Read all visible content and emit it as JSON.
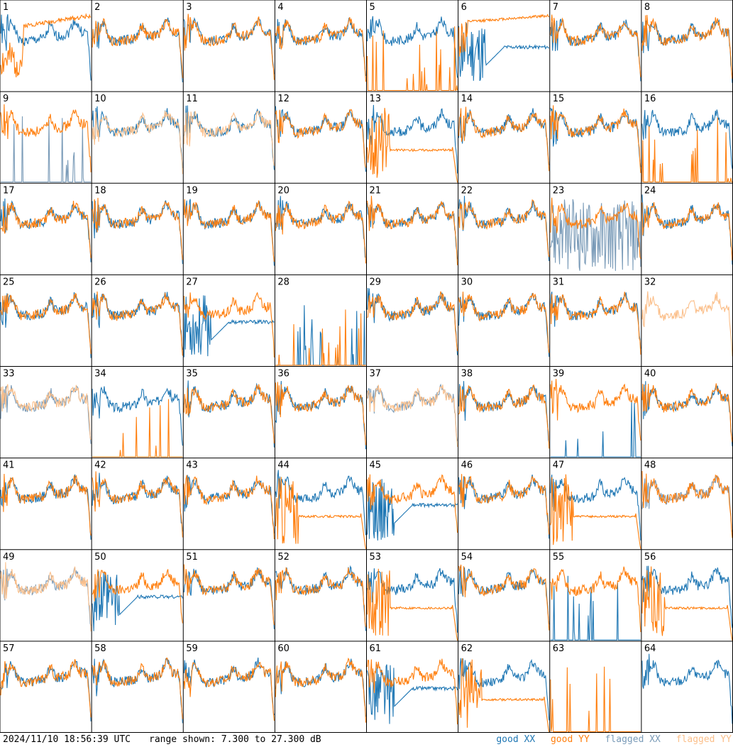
{
  "colors": {
    "good_xx": "#1f77b4",
    "good_yy": "#ff7f0e",
    "flagged_xx": "#7a9bb8",
    "flagged_yy": "#fbbf8a",
    "grid_line": "#000000",
    "background": "#ffffff",
    "label": "#000000"
  },
  "footer": {
    "timestamp": "2024/11/10 18:56:39 UTC",
    "range_text": "range shown: 7.300 to 27.300 dB"
  },
  "legend": [
    {
      "label": "good XX",
      "color": "#1f77b4"
    },
    {
      "label": "good YY",
      "color": "#ff7f0e"
    },
    {
      "label": "flagged XX",
      "color": "#7a9bb8"
    },
    {
      "label": "flagged YY",
      "color": "#fbbf8a"
    }
  ],
  "chart_data": {
    "type": "line",
    "grid": {
      "rows": 8,
      "cols": 8
    },
    "ylim": [
      7.3,
      27.3
    ],
    "yunit": "dB",
    "series_names": [
      "good XX",
      "good YY",
      "flagged XX",
      "flagged YY"
    ],
    "panels": [
      {
        "label": "1",
        "xx": {
          "status": "good",
          "shape": "normal",
          "seed": 1
        },
        "yy": {
          "status": "good",
          "shape": "lowrise",
          "seed": 2
        }
      },
      {
        "label": "2",
        "xx": {
          "status": "good",
          "shape": "normal",
          "seed": 3
        },
        "yy": {
          "status": "good",
          "shape": "normal",
          "seed": 4
        }
      },
      {
        "label": "3",
        "xx": {
          "status": "good",
          "shape": "normal",
          "seed": 5
        },
        "yy": {
          "status": "good",
          "shape": "normal",
          "seed": 6
        }
      },
      {
        "label": "4",
        "xx": {
          "status": "good",
          "shape": "normal",
          "seed": 7
        },
        "yy": {
          "status": "good",
          "shape": "normal",
          "seed": 8
        }
      },
      {
        "label": "5",
        "xx": {
          "status": "good",
          "shape": "normal",
          "seed": 9
        },
        "yy": {
          "status": "good",
          "shape": "spiky",
          "seed": 10
        }
      },
      {
        "label": "6",
        "xx": {
          "status": "good",
          "shape": "dip",
          "seed": 11
        },
        "yy": {
          "status": "good",
          "shape": "flathigh",
          "seed": 12
        }
      },
      {
        "label": "7",
        "xx": {
          "status": "good",
          "shape": "normal",
          "seed": 13
        },
        "yy": {
          "status": "good",
          "shape": "normal",
          "seed": 14
        }
      },
      {
        "label": "8",
        "xx": {
          "status": "good",
          "shape": "normal",
          "seed": 15
        },
        "yy": {
          "status": "good",
          "shape": "normal",
          "seed": 16
        }
      },
      {
        "label": "9",
        "xx": {
          "status": "flagged",
          "shape": "spiky",
          "seed": 17
        },
        "yy": {
          "status": "good",
          "shape": "normal",
          "seed": 18
        }
      },
      {
        "label": "10",
        "xx": {
          "status": "good",
          "shape": "normal",
          "seed": 19
        },
        "yy": {
          "status": "flagged",
          "shape": "normal",
          "seed": 20
        }
      },
      {
        "label": "11",
        "xx": {
          "status": "good",
          "shape": "normal",
          "seed": 21
        },
        "yy": {
          "status": "flagged",
          "shape": "normal",
          "seed": 22
        }
      },
      {
        "label": "12",
        "xx": {
          "status": "good",
          "shape": "normal",
          "seed": 23
        },
        "yy": {
          "status": "good",
          "shape": "normal",
          "seed": 24
        }
      },
      {
        "label": "13",
        "xx": {
          "status": "good",
          "shape": "normal",
          "seed": 25
        },
        "yy": {
          "status": "good",
          "shape": "plateau",
          "seed": 26
        }
      },
      {
        "label": "14",
        "xx": {
          "status": "good",
          "shape": "normal",
          "seed": 27
        },
        "yy": {
          "status": "good",
          "shape": "normal",
          "seed": 28
        }
      },
      {
        "label": "15",
        "xx": {
          "status": "good",
          "shape": "normal",
          "seed": 29
        },
        "yy": {
          "status": "good",
          "shape": "normal",
          "seed": 30
        }
      },
      {
        "label": "16",
        "xx": {
          "status": "good",
          "shape": "normal",
          "seed": 31
        },
        "yy": {
          "status": "good",
          "shape": "spiky",
          "seed": 32
        }
      },
      {
        "label": "17",
        "xx": {
          "status": "good",
          "shape": "normal",
          "seed": 33
        },
        "yy": {
          "status": "good",
          "shape": "normal",
          "seed": 34
        }
      },
      {
        "label": "18",
        "xx": {
          "status": "good",
          "shape": "normal",
          "seed": 35
        },
        "yy": {
          "status": "good",
          "shape": "normal",
          "seed": 36
        }
      },
      {
        "label": "19",
        "xx": {
          "status": "good",
          "shape": "normal",
          "seed": 37
        },
        "yy": {
          "status": "good",
          "shape": "normal",
          "seed": 38
        }
      },
      {
        "label": "20",
        "xx": {
          "status": "good",
          "shape": "normal",
          "seed": 39
        },
        "yy": {
          "status": "good",
          "shape": "normal",
          "seed": 40
        }
      },
      {
        "label": "21",
        "xx": {
          "status": "good",
          "shape": "normal",
          "seed": 41
        },
        "yy": {
          "status": "good",
          "shape": "normal",
          "seed": 42
        }
      },
      {
        "label": "22",
        "xx": {
          "status": "good",
          "shape": "normal",
          "seed": 43
        },
        "yy": {
          "status": "good",
          "shape": "normal",
          "seed": 44
        }
      },
      {
        "label": "23",
        "xx": {
          "status": "flagged",
          "shape": "noisy",
          "seed": 45
        },
        "yy": {
          "status": "good",
          "shape": "normal",
          "seed": 46
        }
      },
      {
        "label": "24",
        "xx": {
          "status": "good",
          "shape": "normal",
          "seed": 47
        },
        "yy": {
          "status": "good",
          "shape": "normal",
          "seed": 48
        }
      },
      {
        "label": "25",
        "xx": {
          "status": "good",
          "shape": "normal",
          "seed": 49
        },
        "yy": {
          "status": "good",
          "shape": "normal",
          "seed": 50
        }
      },
      {
        "label": "26",
        "xx": {
          "status": "good",
          "shape": "normal",
          "seed": 51
        },
        "yy": {
          "status": "good",
          "shape": "normal",
          "seed": 52
        }
      },
      {
        "label": "27",
        "xx": {
          "status": "good",
          "shape": "dip",
          "seed": 53
        },
        "yy": {
          "status": "good",
          "shape": "normal",
          "seed": 54
        }
      },
      {
        "label": "28",
        "xx": {
          "status": "good",
          "shape": "spiky",
          "seed": 55
        },
        "yy": {
          "status": "good",
          "shape": "spiky",
          "seed": 56
        }
      },
      {
        "label": "29",
        "xx": {
          "status": "good",
          "shape": "normal",
          "seed": 57
        },
        "yy": {
          "status": "good",
          "shape": "normal",
          "seed": 58
        }
      },
      {
        "label": "30",
        "xx": {
          "status": "good",
          "shape": "normal",
          "seed": 59
        },
        "yy": {
          "status": "good",
          "shape": "normal",
          "seed": 60
        }
      },
      {
        "label": "31",
        "xx": {
          "status": "good",
          "shape": "normal",
          "seed": 61
        },
        "yy": {
          "status": "good",
          "shape": "normal",
          "seed": 62
        }
      },
      {
        "label": "32",
        "xx": {
          "status": "flagged",
          "shape": "none",
          "seed": 63
        },
        "yy": {
          "status": "flagged",
          "shape": "normal",
          "seed": 64
        }
      },
      {
        "label": "33",
        "xx": {
          "status": "flagged",
          "shape": "normal",
          "seed": 65
        },
        "yy": {
          "status": "flagged",
          "shape": "normal",
          "seed": 66
        }
      },
      {
        "label": "34",
        "xx": {
          "status": "good",
          "shape": "normal",
          "seed": 67
        },
        "yy": {
          "status": "good",
          "shape": "spiky",
          "seed": 68
        }
      },
      {
        "label": "35",
        "xx": {
          "status": "good",
          "shape": "normal",
          "seed": 69
        },
        "yy": {
          "status": "good",
          "shape": "normal",
          "seed": 70
        }
      },
      {
        "label": "36",
        "xx": {
          "status": "good",
          "shape": "normal",
          "seed": 71
        },
        "yy": {
          "status": "good",
          "shape": "normal",
          "seed": 72
        }
      },
      {
        "label": "37",
        "xx": {
          "status": "flagged",
          "shape": "normal",
          "seed": 73
        },
        "yy": {
          "status": "flagged",
          "shape": "normal",
          "seed": 74
        }
      },
      {
        "label": "38",
        "xx": {
          "status": "good",
          "shape": "normal",
          "seed": 75
        },
        "yy": {
          "status": "good",
          "shape": "normal",
          "seed": 76
        }
      },
      {
        "label": "39",
        "xx": {
          "status": "good",
          "shape": "spiky",
          "seed": 77
        },
        "yy": {
          "status": "good",
          "shape": "normal",
          "seed": 78
        }
      },
      {
        "label": "40",
        "xx": {
          "status": "good",
          "shape": "normal",
          "seed": 79
        },
        "yy": {
          "status": "good",
          "shape": "normal",
          "seed": 80
        }
      },
      {
        "label": "41",
        "xx": {
          "status": "good",
          "shape": "normal",
          "seed": 81
        },
        "yy": {
          "status": "good",
          "shape": "normal",
          "seed": 82
        }
      },
      {
        "label": "42",
        "xx": {
          "status": "good",
          "shape": "normal",
          "seed": 83
        },
        "yy": {
          "status": "good",
          "shape": "normal",
          "seed": 84
        }
      },
      {
        "label": "43",
        "xx": {
          "status": "good",
          "shape": "normal",
          "seed": 85
        },
        "yy": {
          "status": "good",
          "shape": "normal",
          "seed": 86
        }
      },
      {
        "label": "44",
        "xx": {
          "status": "good",
          "shape": "normal",
          "seed": 87
        },
        "yy": {
          "status": "good",
          "shape": "plateau",
          "seed": 88
        }
      },
      {
        "label": "45",
        "xx": {
          "status": "good",
          "shape": "dip",
          "seed": 89
        },
        "yy": {
          "status": "good",
          "shape": "normal",
          "seed": 90
        }
      },
      {
        "label": "46",
        "xx": {
          "status": "good",
          "shape": "normal",
          "seed": 91
        },
        "yy": {
          "status": "good",
          "shape": "normal",
          "seed": 92
        }
      },
      {
        "label": "47",
        "xx": {
          "status": "good",
          "shape": "normal",
          "seed": 93
        },
        "yy": {
          "status": "good",
          "shape": "plateau",
          "seed": 94
        }
      },
      {
        "label": "48",
        "xx": {
          "status": "flagged",
          "shape": "normal",
          "seed": 95
        },
        "yy": {
          "status": "good",
          "shape": "normal",
          "seed": 96
        }
      },
      {
        "label": "49",
        "xx": {
          "status": "flagged",
          "shape": "normal",
          "seed": 97
        },
        "yy": {
          "status": "flagged",
          "shape": "normal",
          "seed": 98
        }
      },
      {
        "label": "50",
        "xx": {
          "status": "good",
          "shape": "dip",
          "seed": 99
        },
        "yy": {
          "status": "good",
          "shape": "normal",
          "seed": 100
        }
      },
      {
        "label": "51",
        "xx": {
          "status": "good",
          "shape": "normal",
          "seed": 101
        },
        "yy": {
          "status": "good",
          "shape": "normal",
          "seed": 102
        }
      },
      {
        "label": "52",
        "xx": {
          "status": "good",
          "shape": "normal",
          "seed": 103
        },
        "yy": {
          "status": "good",
          "shape": "normal",
          "seed": 104
        }
      },
      {
        "label": "53",
        "xx": {
          "status": "good",
          "shape": "normal",
          "seed": 105
        },
        "yy": {
          "status": "good",
          "shape": "plateau",
          "seed": 106
        }
      },
      {
        "label": "54",
        "xx": {
          "status": "good",
          "shape": "normal",
          "seed": 107
        },
        "yy": {
          "status": "good",
          "shape": "normal",
          "seed": 108
        }
      },
      {
        "label": "55",
        "xx": {
          "status": "good",
          "shape": "spiky",
          "seed": 109
        },
        "yy": {
          "status": "good",
          "shape": "normal",
          "seed": 110
        }
      },
      {
        "label": "56",
        "xx": {
          "status": "good",
          "shape": "normal",
          "seed": 111
        },
        "yy": {
          "status": "good",
          "shape": "plateau",
          "seed": 112
        }
      },
      {
        "label": "57",
        "xx": {
          "status": "good",
          "shape": "normal",
          "seed": 113
        },
        "yy": {
          "status": "good",
          "shape": "normal",
          "seed": 114
        }
      },
      {
        "label": "58",
        "xx": {
          "status": "good",
          "shape": "normal",
          "seed": 115
        },
        "yy": {
          "status": "good",
          "shape": "normal",
          "seed": 116
        }
      },
      {
        "label": "59",
        "xx": {
          "status": "good",
          "shape": "normal",
          "seed": 117
        },
        "yy": {
          "status": "good",
          "shape": "normal",
          "seed": 118
        }
      },
      {
        "label": "60",
        "xx": {
          "status": "good",
          "shape": "normal",
          "seed": 119
        },
        "yy": {
          "status": "good",
          "shape": "normal",
          "seed": 120
        }
      },
      {
        "label": "61",
        "xx": {
          "status": "good",
          "shape": "dip",
          "seed": 121
        },
        "yy": {
          "status": "good",
          "shape": "normal",
          "seed": 122
        }
      },
      {
        "label": "62",
        "xx": {
          "status": "good",
          "shape": "normal",
          "seed": 123
        },
        "yy": {
          "status": "good",
          "shape": "plateau",
          "seed": 124
        }
      },
      {
        "label": "63",
        "xx": {
          "status": "good",
          "shape": "none",
          "seed": 125
        },
        "yy": {
          "status": "good",
          "shape": "spiky",
          "seed": 126
        }
      },
      {
        "label": "64",
        "xx": {
          "status": "good",
          "shape": "normal",
          "seed": 127
        },
        "yy": {
          "status": "good",
          "shape": "none",
          "seed": 128
        }
      }
    ]
  }
}
